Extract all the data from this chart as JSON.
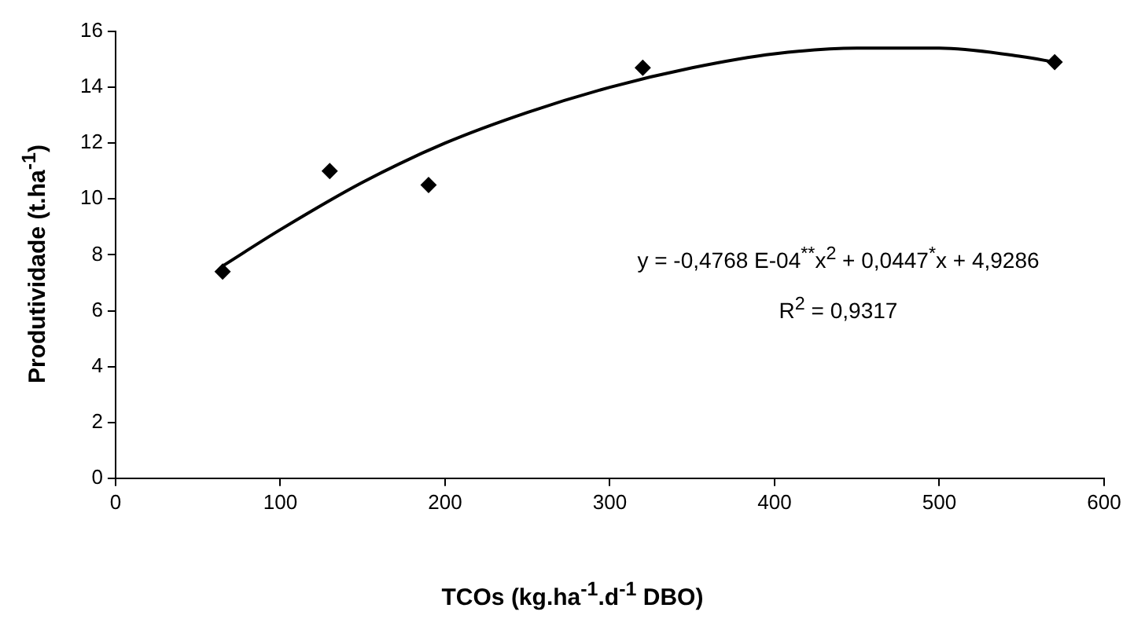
{
  "chart_data": {
    "type": "scatter",
    "xlabel": "TCOs (kg.ha$^{-1}$.d$^{-1}$ DBO)",
    "ylabel": "Produtividade (t.ha$^{-1}$)",
    "xlim": [
      0,
      600
    ],
    "xticks": [
      0,
      100,
      200,
      300,
      400,
      500,
      600
    ],
    "ylim": [
      0,
      16
    ],
    "yticks": [
      0,
      2,
      4,
      6,
      8,
      10,
      12,
      14,
      16
    ],
    "grid": false,
    "legend": false,
    "marker": "diamond",
    "series": [
      {
        "color": "#000000",
        "x": [
          65,
          130,
          190,
          320,
          570
        ],
        "values": [
          7.4,
          11.0,
          10.5,
          14.7,
          14.9
        ]
      },
      {
        "type": "line",
        "color": "#000000",
        "marker": "none",
        "x": [
          65,
          100,
          150,
          200,
          250,
          300,
          350,
          400,
          450,
          500,
          550,
          570
        ],
        "values": [
          7.6,
          8.9,
          10.6,
          12.0,
          13.1,
          14.0,
          14.7,
          15.2,
          15.4,
          15.4,
          15.1,
          14.9
        ]
      }
    ],
    "annotations": [
      "y = -0,4768 E-04$^{**}$x$^{2}$ + 0,0447$^{*}$x + 4,9286",
      "R$^{2}$ = 0,9317"
    ]
  }
}
